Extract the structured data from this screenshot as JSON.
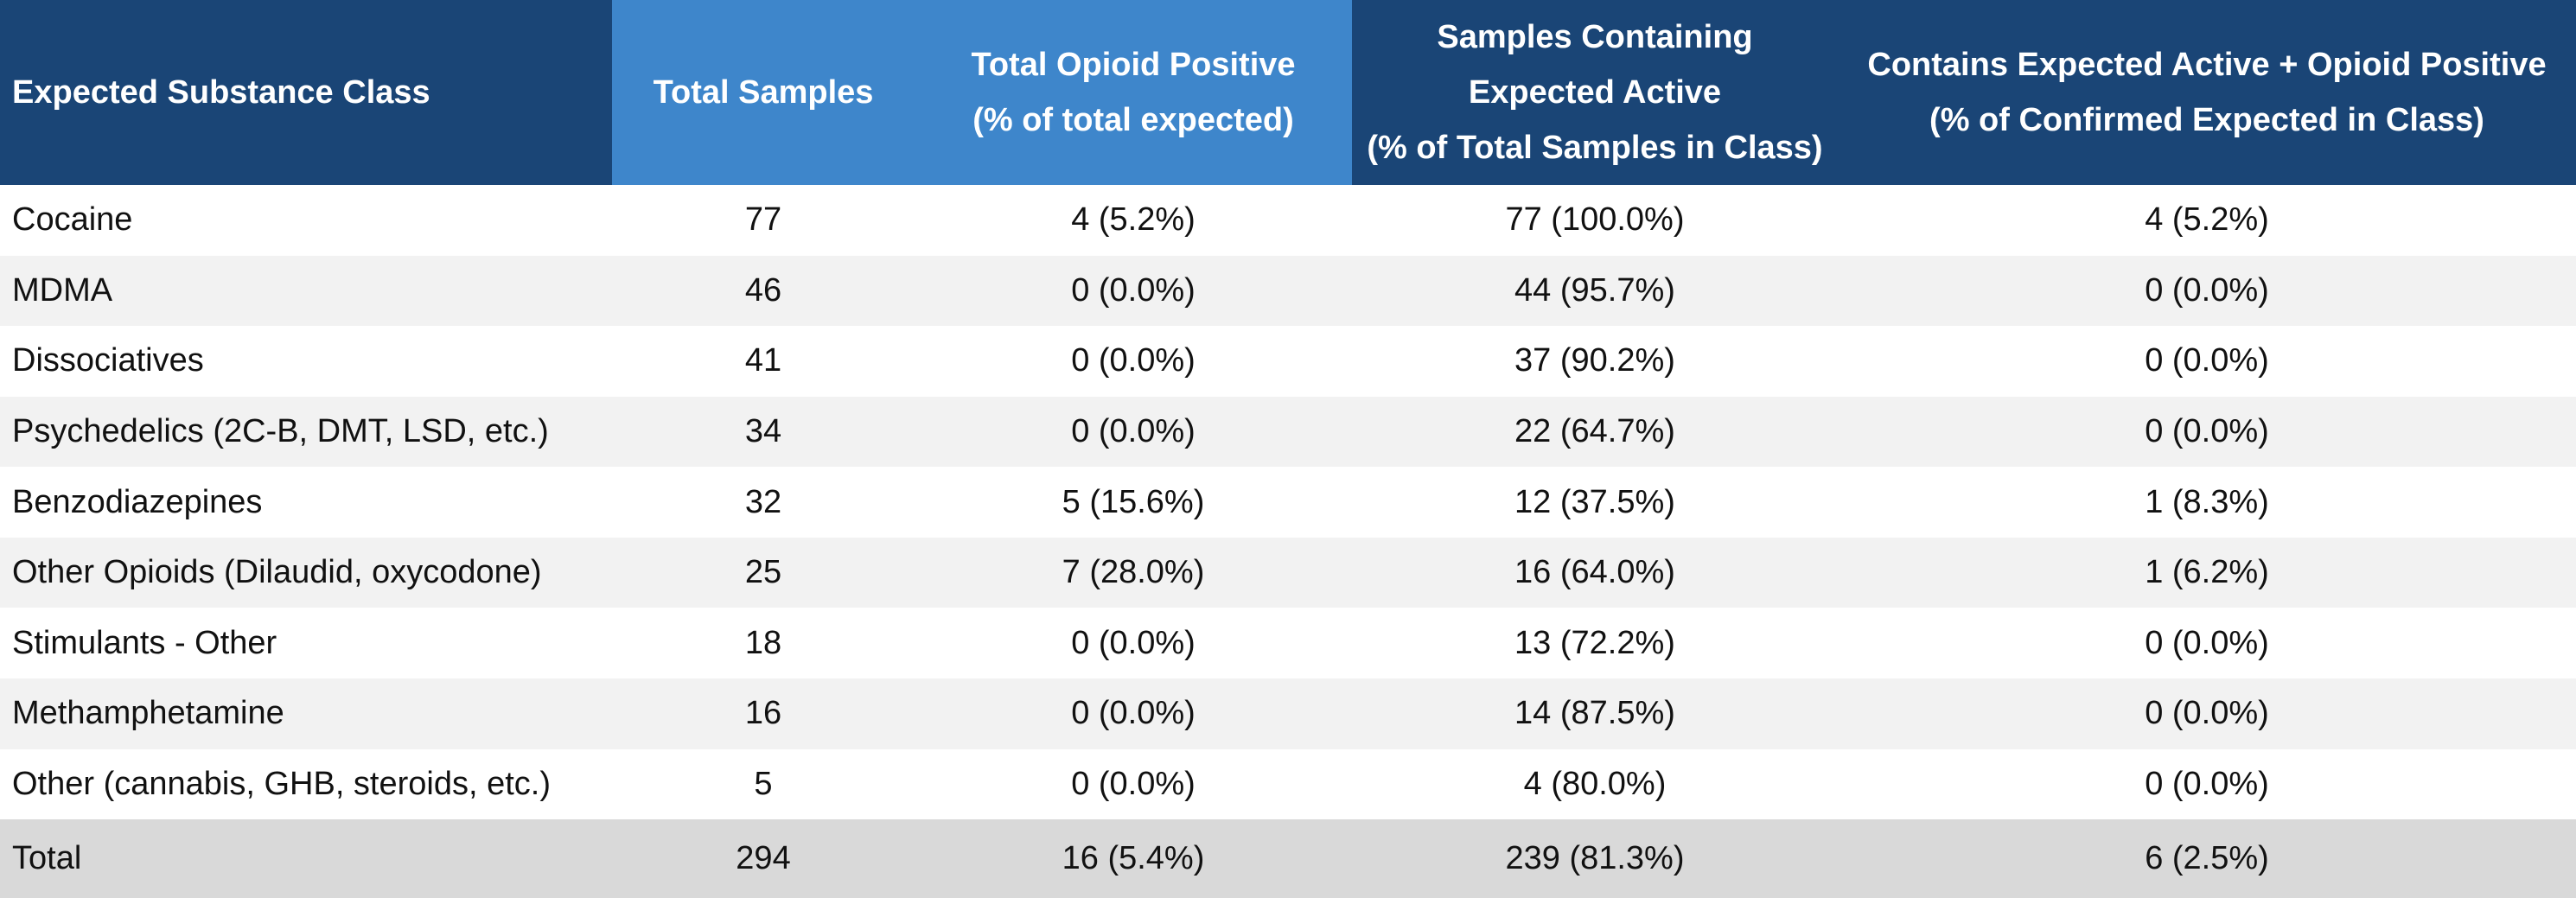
{
  "header": {
    "col1": "Expected Substance Class",
    "col2": "Total Samples",
    "col3_line1": "Total Opioid Positive",
    "col3_line2": "(% of total expected)",
    "col4_line1": "Samples Containing",
    "col4_line2": "Expected Active",
    "col4_line3": "(% of Total Samples in Class)",
    "col5_line1": "Contains Expected Active + Opioid Positive",
    "col5_line2": "(% of Confirmed Expected in Class)"
  },
  "rows": [
    {
      "class": "Cocaine",
      "total": "77",
      "opioid": "4 (5.2%)",
      "expected": "77 (100.0%)",
      "both": "4 (5.2%)"
    },
    {
      "class": "MDMA",
      "total": "46",
      "opioid": "0 (0.0%)",
      "expected": "44 (95.7%)",
      "both": "0 (0.0%)"
    },
    {
      "class": "Dissociatives",
      "total": "41",
      "opioid": "0 (0.0%)",
      "expected": "37 (90.2%)",
      "both": "0 (0.0%)"
    },
    {
      "class": "Psychedelics (2C-B, DMT, LSD, etc.)",
      "total": "34",
      "opioid": "0 (0.0%)",
      "expected": "22 (64.7%)",
      "both": "0 (0.0%)"
    },
    {
      "class": "Benzodiazepines",
      "total": "32",
      "opioid": "5 (15.6%)",
      "expected": "12 (37.5%)",
      "both": "1 (8.3%)"
    },
    {
      "class": "Other Opioids (Dilaudid, oxycodone)",
      "total": "25",
      "opioid": "7 (28.0%)",
      "expected": "16 (64.0%)",
      "both": "1 (6.2%)"
    },
    {
      "class": "Stimulants - Other",
      "total": "18",
      "opioid": "0 (0.0%)",
      "expected": "13 (72.2%)",
      "both": "0 (0.0%)"
    },
    {
      "class": "Methamphetamine",
      "total": "16",
      "opioid": "0 (0.0%)",
      "expected": "14 (87.5%)",
      "both": "0 (0.0%)"
    },
    {
      "class": "Other (cannabis, GHB, steroids, etc.)",
      "total": "5",
      "opioid": "0 (0.0%)",
      "expected": "4 (80.0%)",
      "both": "0 (0.0%)"
    }
  ],
  "total_row": {
    "class": "Total",
    "total": "294",
    "opioid": "16 (5.4%)",
    "expected": "239 (81.3%)",
    "both": "6 (2.5%)"
  },
  "colors": {
    "header_dark": "#1a4576",
    "header_accent": "#3e86cb",
    "row_alt": "#f2f2f2",
    "total_bg": "#d9d9d9"
  }
}
